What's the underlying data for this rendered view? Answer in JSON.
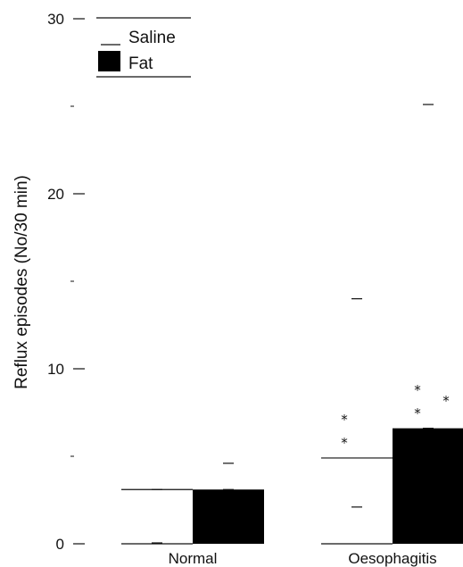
{
  "chart_data": {
    "type": "bar",
    "ylabel": "Reflux episodes (No/30 min)",
    "ylim": [
      0,
      30
    ],
    "yticks_labeled": [
      0,
      10,
      20,
      30
    ],
    "yticks_minor": [
      5,
      15,
      25
    ],
    "categories": [
      "Normal",
      "Oesophagitis"
    ],
    "series": [
      {
        "name": "Saline",
        "fill": "#ffffff",
        "values": [
          3.1,
          4.9
        ],
        "error_low": [
          0.05,
          2.1
        ],
        "error_high": [
          3.1,
          14.0
        ]
      },
      {
        "name": "Fat",
        "fill": "#000000",
        "values": [
          3.1,
          6.6
        ],
        "error_low": [
          3.1,
          6.6
        ],
        "error_high": [
          4.6,
          25.1
        ]
      }
    ],
    "annotations": [
      "*",
      "*",
      "*",
      "*",
      "*"
    ],
    "legend_placement": "top-left",
    "grid": false
  }
}
